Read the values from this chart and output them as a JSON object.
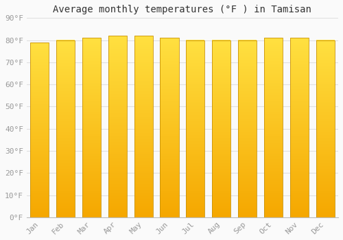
{
  "title": "Average monthly temperatures (°F ) in Tamisan",
  "months": [
    "Jan",
    "Feb",
    "Mar",
    "Apr",
    "May",
    "Jun",
    "Jul",
    "Aug",
    "Sep",
    "Oct",
    "Nov",
    "Dec"
  ],
  "values": [
    79,
    80,
    81,
    82,
    82,
    81,
    80,
    80,
    80,
    81,
    81,
    80
  ],
  "ylim": [
    0,
    90
  ],
  "yticks": [
    0,
    10,
    20,
    30,
    40,
    50,
    60,
    70,
    80,
    90
  ],
  "ytick_labels": [
    "0°F",
    "10°F",
    "20°F",
    "30°F",
    "40°F",
    "50°F",
    "60°F",
    "70°F",
    "80°F",
    "90°F"
  ],
  "bar_color_bottom": "#F5A700",
  "bar_color_top": "#FFE040",
  "bar_edge_color": "#C8920A",
  "background_color": "#FAFAFA",
  "grid_color": "#E0E0E0",
  "title_fontsize": 10,
  "tick_fontsize": 8,
  "title_color": "#333333",
  "tick_color": "#999999",
  "bar_width": 0.72
}
